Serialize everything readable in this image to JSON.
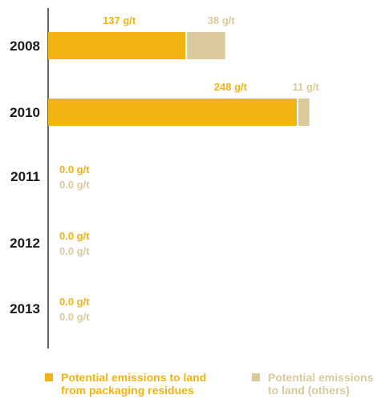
{
  "chart_data": {
    "type": "bar",
    "orientation": "horizontal",
    "stacked": true,
    "categories": [
      "2008",
      "2010",
      "2011",
      "2012",
      "2013"
    ],
    "series": [
      {
        "name": "Potential emissions to land from packaging residues",
        "legend_lines": [
          "Potential emissions to land",
          "from packaging residues"
        ],
        "color": "#f0b311",
        "values": [
          137,
          248,
          0.0,
          0.0,
          0.0
        ],
        "labels": [
          "137 g/t",
          "248 g/t",
          "0.0 g/t",
          "0.0 g/t",
          "0.0 g/t"
        ]
      },
      {
        "name": "Potential emissions to land (others)",
        "legend_lines": [
          "Potential emissions",
          "to land (others)"
        ],
        "color": "#d9c99b",
        "values": [
          38,
          11,
          0.0,
          0.0,
          0.0
        ],
        "labels": [
          "38 g/t",
          "11 g/t",
          "0.0 g/t",
          "0.0 g/t",
          "0.0 g/t"
        ]
      }
    ],
    "unit": "g/t",
    "xlim": [
      0,
      290
    ],
    "grid": false,
    "legend_position": "bottom"
  }
}
